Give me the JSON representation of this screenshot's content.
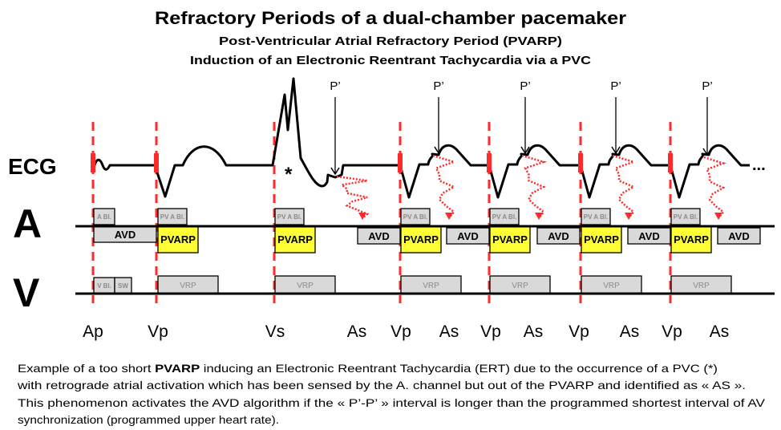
{
  "title": "Refractory  Periods of a dual-chamber pacemaker",
  "subtitle1": "Post-Ventricular Atrial Refractory Period  (PVARP)",
  "subtitle2": "Induction of an Electronic Reentrant Tachycardia via a PVC",
  "row_labels": {
    "ecg": "ECG",
    "atrial": "A",
    "ventricular": "V"
  },
  "ecg": {
    "pvc_marker": "*",
    "retrograde_p_label": "P’",
    "continuation": "..."
  },
  "box_labels": {
    "a_blanking": "A Bl.",
    "pv_a_blanking": "PV A Bl.",
    "avd": "AVD",
    "pvarp": "PVARP",
    "v_blanking": "V Bl.",
    "safety_window": "SW",
    "vrp": "VRP"
  },
  "event_labels": [
    "Ap",
    "Vp",
    "Vs",
    "As",
    "Vp",
    "As",
    "Vp",
    "As",
    "Vp",
    "As",
    "Vp",
    "As"
  ],
  "caption": {
    "line1_before": "Example of a too short ",
    "line1_bold": "PVARP",
    "line1_after": " inducing an Electronic Reentrant Tachycardia (ERT) due to the occurrence of a PVC (*)",
    "line2": "with retrograde atrial activation which has been sensed by the A. channel but out of the PVARP and identified as « AS ».",
    "line3": "This phenomenon activates the AVD algorithm if the « P’-P’ » interval is longer than the programmed shortest interval of AV",
    "line4": "synchronization (programmed upper heart rate)."
  },
  "colors": {
    "pacing_marker": "#ff2a2a",
    "pvarp_fill": "#ffff33",
    "box_fill": "#d9d9d9",
    "retrograde": "#ff2a2a"
  }
}
